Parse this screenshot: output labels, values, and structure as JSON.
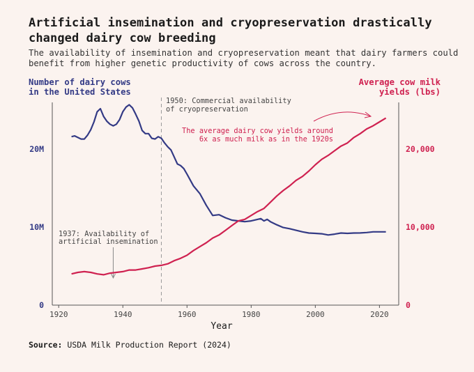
{
  "title": "Artificial insemination and cryopreservation drastically changed dairy cow breeding",
  "subtitle": "The availability of insemination and cryopreservation meant that dairy farmers could benefit from higher genetic productivity of cows across the country.",
  "source_label": "Source:",
  "source_text": "USDA Milk Production Report (2024)",
  "colors": {
    "cows": "#333a85",
    "milk": "#cf2150",
    "axis": "#555555",
    "grid": "#999999",
    "background": "#fbf3ef"
  },
  "chart_data": {
    "type": "line",
    "xlabel": "Year",
    "xlim": [
      1918,
      2026
    ],
    "x_ticks": [
      1920,
      1940,
      1960,
      1980,
      2000,
      2020
    ],
    "left_axis": {
      "label_line1": "Number of dairy cows",
      "label_line2": "in the United States",
      "ylim": [
        0,
        26000000
      ],
      "ticks": [
        0,
        10000000,
        20000000
      ],
      "tick_labels": [
        "0",
        "10M",
        "20M"
      ]
    },
    "right_axis": {
      "label_line1": "Average cow milk",
      "label_line2": "yields (lbs)",
      "ylim": [
        0,
        26000
      ],
      "ticks": [
        0,
        10000,
        20000
      ],
      "tick_labels": [
        "0",
        "10,000",
        "20,000"
      ]
    },
    "series": [
      {
        "name": "Number of dairy cows",
        "axis": "left",
        "x": [
          1924,
          1925,
          1926,
          1927,
          1928,
          1929,
          1930,
          1931,
          1932,
          1933,
          1934,
          1935,
          1936,
          1937,
          1938,
          1939,
          1940,
          1941,
          1942,
          1943,
          1944,
          1945,
          1946,
          1947,
          1948,
          1949,
          1950,
          1951,
          1952,
          1953,
          1954,
          1955,
          1956,
          1957,
          1958,
          1959,
          1960,
          1962,
          1964,
          1966,
          1968,
          1970,
          1972,
          1974,
          1976,
          1978,
          1980,
          1982,
          1983,
          1984,
          1985,
          1986,
          1988,
          1990,
          1992,
          1994,
          1996,
          1998,
          2000,
          2002,
          2004,
          2006,
          2008,
          2010,
          2012,
          2014,
          2016,
          2018,
          2020,
          2022
        ],
        "values": [
          21600000,
          21700000,
          21500000,
          21300000,
          21300000,
          21800000,
          22500000,
          23500000,
          24800000,
          25200000,
          24200000,
          23600000,
          23200000,
          23000000,
          23200000,
          23800000,
          24800000,
          25400000,
          25700000,
          25300000,
          24500000,
          23600000,
          22400000,
          22000000,
          22000000,
          21400000,
          21300000,
          21600000,
          21400000,
          20800000,
          20300000,
          19900000,
          19000000,
          18100000,
          17900000,
          17500000,
          16800000,
          15300000,
          14300000,
          12800000,
          11500000,
          11600000,
          11200000,
          10900000,
          10800000,
          10700000,
          10800000,
          11000000,
          11100000,
          10800000,
          11000000,
          10700000,
          10300000,
          9950000,
          9800000,
          9600000,
          9400000,
          9250000,
          9200000,
          9150000,
          9000000,
          9100000,
          9250000,
          9200000,
          9250000,
          9260000,
          9310000,
          9400000,
          9400000,
          9400000
        ]
      },
      {
        "name": "Average cow milk yields",
        "axis": "right",
        "x": [
          1924,
          1926,
          1928,
          1930,
          1932,
          1934,
          1936,
          1938,
          1940,
          1942,
          1944,
          1946,
          1948,
          1950,
          1952,
          1954,
          1956,
          1958,
          1960,
          1962,
          1964,
          1966,
          1968,
          1970,
          1972,
          1974,
          1976,
          1978,
          1980,
          1982,
          1984,
          1986,
          1988,
          1990,
          1992,
          1994,
          1996,
          1998,
          2000,
          2002,
          2004,
          2006,
          2008,
          2010,
          2012,
          2014,
          2016,
          2018,
          2020,
          2022
        ],
        "values": [
          4000,
          4200,
          4300,
          4200,
          4000,
          3900,
          4100,
          4200,
          4300,
          4500,
          4500,
          4650,
          4800,
          5000,
          5100,
          5300,
          5700,
          6000,
          6400,
          7000,
          7500,
          8000,
          8600,
          9000,
          9600,
          10200,
          10800,
          11000,
          11500,
          12000,
          12400,
          13200,
          14000,
          14700,
          15300,
          16000,
          16500,
          17200,
          18000,
          18700,
          19200,
          19800,
          20400,
          20800,
          21500,
          22000,
          22600,
          23000,
          23500,
          24000
        ]
      }
    ],
    "annotations": [
      {
        "x": 1937,
        "line1": "1937: Availability of",
        "line2": "artificial insemination"
      },
      {
        "x": 1952,
        "line1": "1950: Commercial availability",
        "line2": "of cryopreservation"
      },
      {
        "line1": "The average dairy cow yields around",
        "line2": "6x as much milk as in the 1920s"
      }
    ]
  }
}
